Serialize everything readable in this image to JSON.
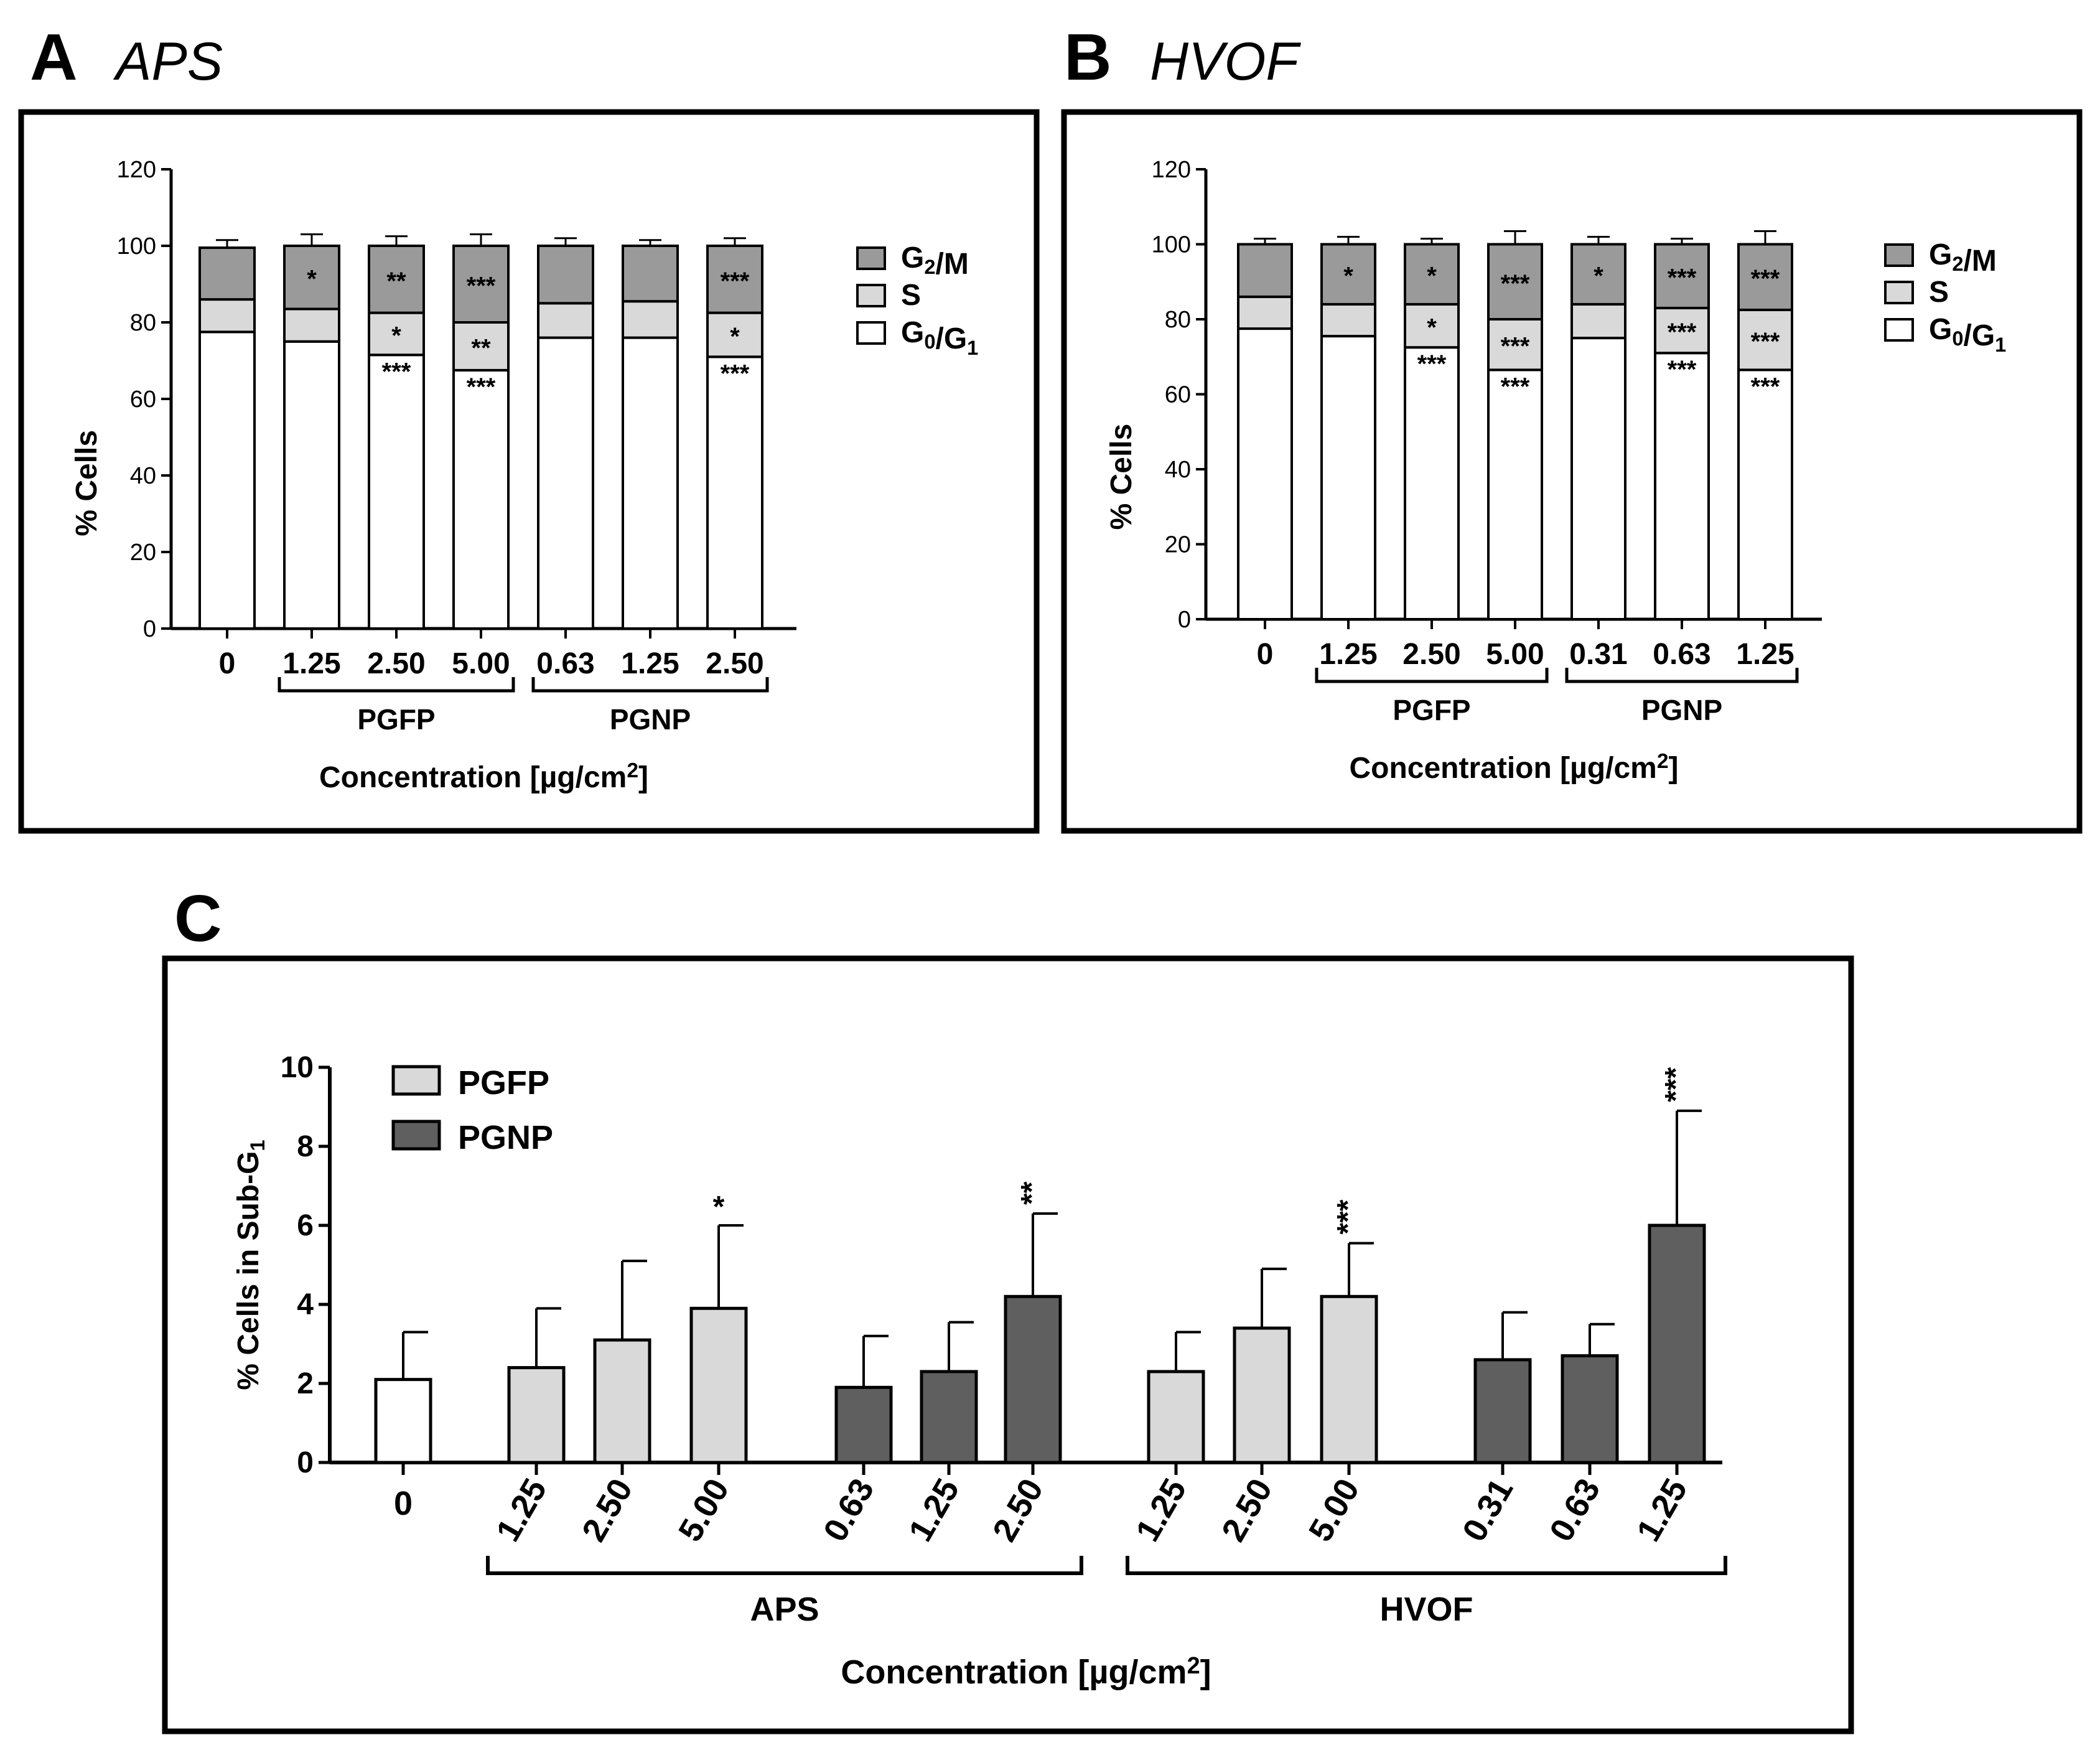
{
  "figure": {
    "panels": [
      {
        "letter": "A",
        "title": "APS"
      },
      {
        "letter": "B",
        "title": "HVOF"
      },
      {
        "letter": "C",
        "title": ""
      }
    ]
  },
  "chart_data": [
    {
      "id": "A",
      "type": "bar",
      "stacked": true,
      "title": "APS",
      "ylabel": "% Cells",
      "xlabel": "Concentration [µg/cm²]",
      "ylim": [
        0,
        120
      ],
      "yticks": [
        0,
        20,
        40,
        60,
        80,
        100,
        120
      ],
      "categories": [
        "0",
        "1.25",
        "2.50",
        "5.00",
        "0.63",
        "1.25",
        "2.50"
      ],
      "groups": [
        {
          "label": "PGFP",
          "from": 1,
          "to": 3
        },
        {
          "label": "PGNP",
          "from": 4,
          "to": 6
        }
      ],
      "legend_position": "right",
      "series": [
        {
          "name": "G0/G1",
          "color": "#ffffff",
          "values": [
            77.5,
            75,
            71.5,
            67.5,
            76,
            76,
            71
          ],
          "errors": [
            3,
            3.5,
            3,
            3,
            3,
            2,
            2.5
          ],
          "sig": [
            "",
            "",
            "***",
            "***",
            "",
            "",
            "***"
          ]
        },
        {
          "name": "S",
          "color": "#d9d9d9",
          "values": [
            8.5,
            8.5,
            11,
            12.5,
            9,
            9.5,
            11.5
          ],
          "errors": [
            2.5,
            2,
            4,
            4,
            1.5,
            2,
            2.5
          ],
          "sig": [
            "",
            "",
            "*",
            "**",
            "",
            "",
            "*"
          ]
        },
        {
          "name": "G2/M",
          "color": "#9a9a9a",
          "values": [
            13.5,
            16.5,
            17.5,
            20,
            15,
            14.5,
            17.5
          ],
          "errors": [
            2,
            3,
            2.5,
            3,
            2,
            1.5,
            2
          ],
          "sig": [
            "",
            "*",
            "**",
            "***",
            "",
            "",
            "***"
          ]
        }
      ]
    },
    {
      "id": "B",
      "type": "bar",
      "stacked": true,
      "title": "HVOF",
      "ylabel": "% Cells",
      "xlabel": "Concentration [µg/cm²]",
      "ylim": [
        0,
        120
      ],
      "yticks": [
        0,
        20,
        40,
        60,
        80,
        100,
        120
      ],
      "categories": [
        "0",
        "1.25",
        "2.50",
        "5.00",
        "0.31",
        "0.63",
        "1.25"
      ],
      "groups": [
        {
          "label": "PGFP",
          "from": 1,
          "to": 3
        },
        {
          "label": "PGNP",
          "from": 4,
          "to": 6
        }
      ],
      "legend_position": "right",
      "series": [
        {
          "name": "G0/G1",
          "color": "#ffffff",
          "values": [
            77.5,
            75.5,
            72.5,
            66.5,
            75,
            71,
            66.5
          ],
          "errors": [
            3,
            2,
            1.5,
            4,
            2,
            2,
            5.5
          ],
          "sig": [
            "",
            "",
            "***",
            "***",
            "",
            "***",
            "***"
          ]
        },
        {
          "name": "S",
          "color": "#d9d9d9",
          "values": [
            8.5,
            8.5,
            11.5,
            13.5,
            9,
            12,
            16
          ],
          "errors": [
            2.5,
            2.5,
            1.5,
            2,
            1.5,
            2.5,
            3
          ],
          "sig": [
            "",
            "",
            "*",
            "***",
            "",
            "***",
            "***"
          ]
        },
        {
          "name": "G2/M",
          "color": "#9a9a9a",
          "values": [
            14,
            16,
            16,
            20,
            16,
            17,
            17.5
          ],
          "errors": [
            1.5,
            2,
            1.5,
            3.5,
            2,
            1.5,
            3.5
          ],
          "sig": [
            "",
            "*",
            "*",
            "***",
            "*",
            "***",
            "***"
          ]
        }
      ]
    },
    {
      "id": "C",
      "type": "bar",
      "stacked": false,
      "title": "",
      "ylabel": "% Cells in Sub-G1",
      "xlabel": "Concentration [µg/cm²]",
      "ylim": [
        0,
        10
      ],
      "yticks": [
        0,
        2,
        4,
        6,
        8,
        10
      ],
      "legend_position": "top-left",
      "legend": [
        {
          "name": "PGFP",
          "color": "#d9d9d9"
        },
        {
          "name": "PGNP",
          "color": "#5f5f5f"
        }
      ],
      "categories": [
        "0",
        "1.25",
        "2.50",
        "5.00",
        "0.63",
        "1.25",
        "2.50",
        "1.25",
        "2.50",
        "5.00",
        "0.31",
        "0.63",
        "1.25"
      ],
      "colors": [
        "#ffffff",
        "#d9d9d9",
        "#d9d9d9",
        "#d9d9d9",
        "#5f5f5f",
        "#5f5f5f",
        "#5f5f5f",
        "#d9d9d9",
        "#d9d9d9",
        "#d9d9d9",
        "#5f5f5f",
        "#5f5f5f",
        "#5f5f5f"
      ],
      "values": [
        2.1,
        2.4,
        3.1,
        3.9,
        1.9,
        2.3,
        4.2,
        2.3,
        3.4,
        4.2,
        2.6,
        2.7,
        6.0
      ],
      "errors": [
        1.2,
        1.5,
        2.0,
        2.1,
        1.3,
        1.25,
        2.1,
        1.0,
        1.5,
        1.35,
        1.2,
        0.8,
        2.9
      ],
      "sig": [
        "",
        "",
        "",
        "*",
        "",
        "",
        "**",
        "",
        "",
        "***",
        "",
        "",
        "***"
      ],
      "groups": [
        {
          "label": "APS",
          "from": 1,
          "to": 6
        },
        {
          "label": "HVOF",
          "from": 7,
          "to": 12
        }
      ]
    }
  ]
}
